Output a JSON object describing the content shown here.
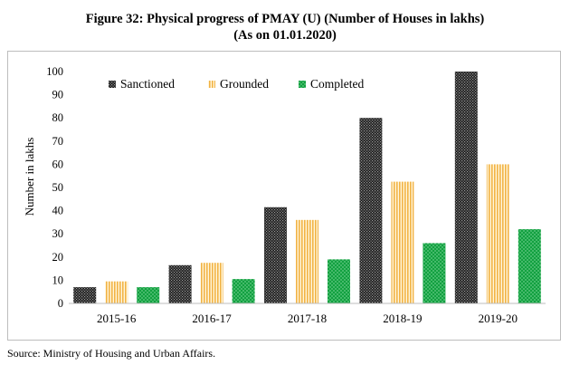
{
  "title_line1": "Figure 32: Physical progress of PMAY (U) (Number of Houses in lakhs)",
  "title_line2": "(As on 01.01.2020)",
  "source": "Source: Ministry of Housing and Urban Affairs.",
  "chart_data": {
    "type": "bar",
    "categories": [
      "2015-16",
      "2016-17",
      "2017-18",
      "2018-19",
      "2019-20"
    ],
    "series": [
      {
        "name": "Sanctioned",
        "values": [
          7,
          16.5,
          41.5,
          80,
          100
        ],
        "color": "#333333"
      },
      {
        "name": "Grounded",
        "values": [
          9.5,
          17.5,
          36,
          52.5,
          60
        ],
        "color": "#f5c46a"
      },
      {
        "name": "Completed",
        "values": [
          7,
          10.5,
          19,
          26,
          32
        ],
        "color": "#1fa34a"
      }
    ],
    "ylabel": "Number in lakhs",
    "ylim": [
      0,
      100
    ],
    "yticks": [
      "0",
      "10",
      "20",
      "30",
      "40",
      "50",
      "60",
      "70",
      "80",
      "90",
      "100"
    ],
    "grid": false,
    "legend": "top-left"
  }
}
